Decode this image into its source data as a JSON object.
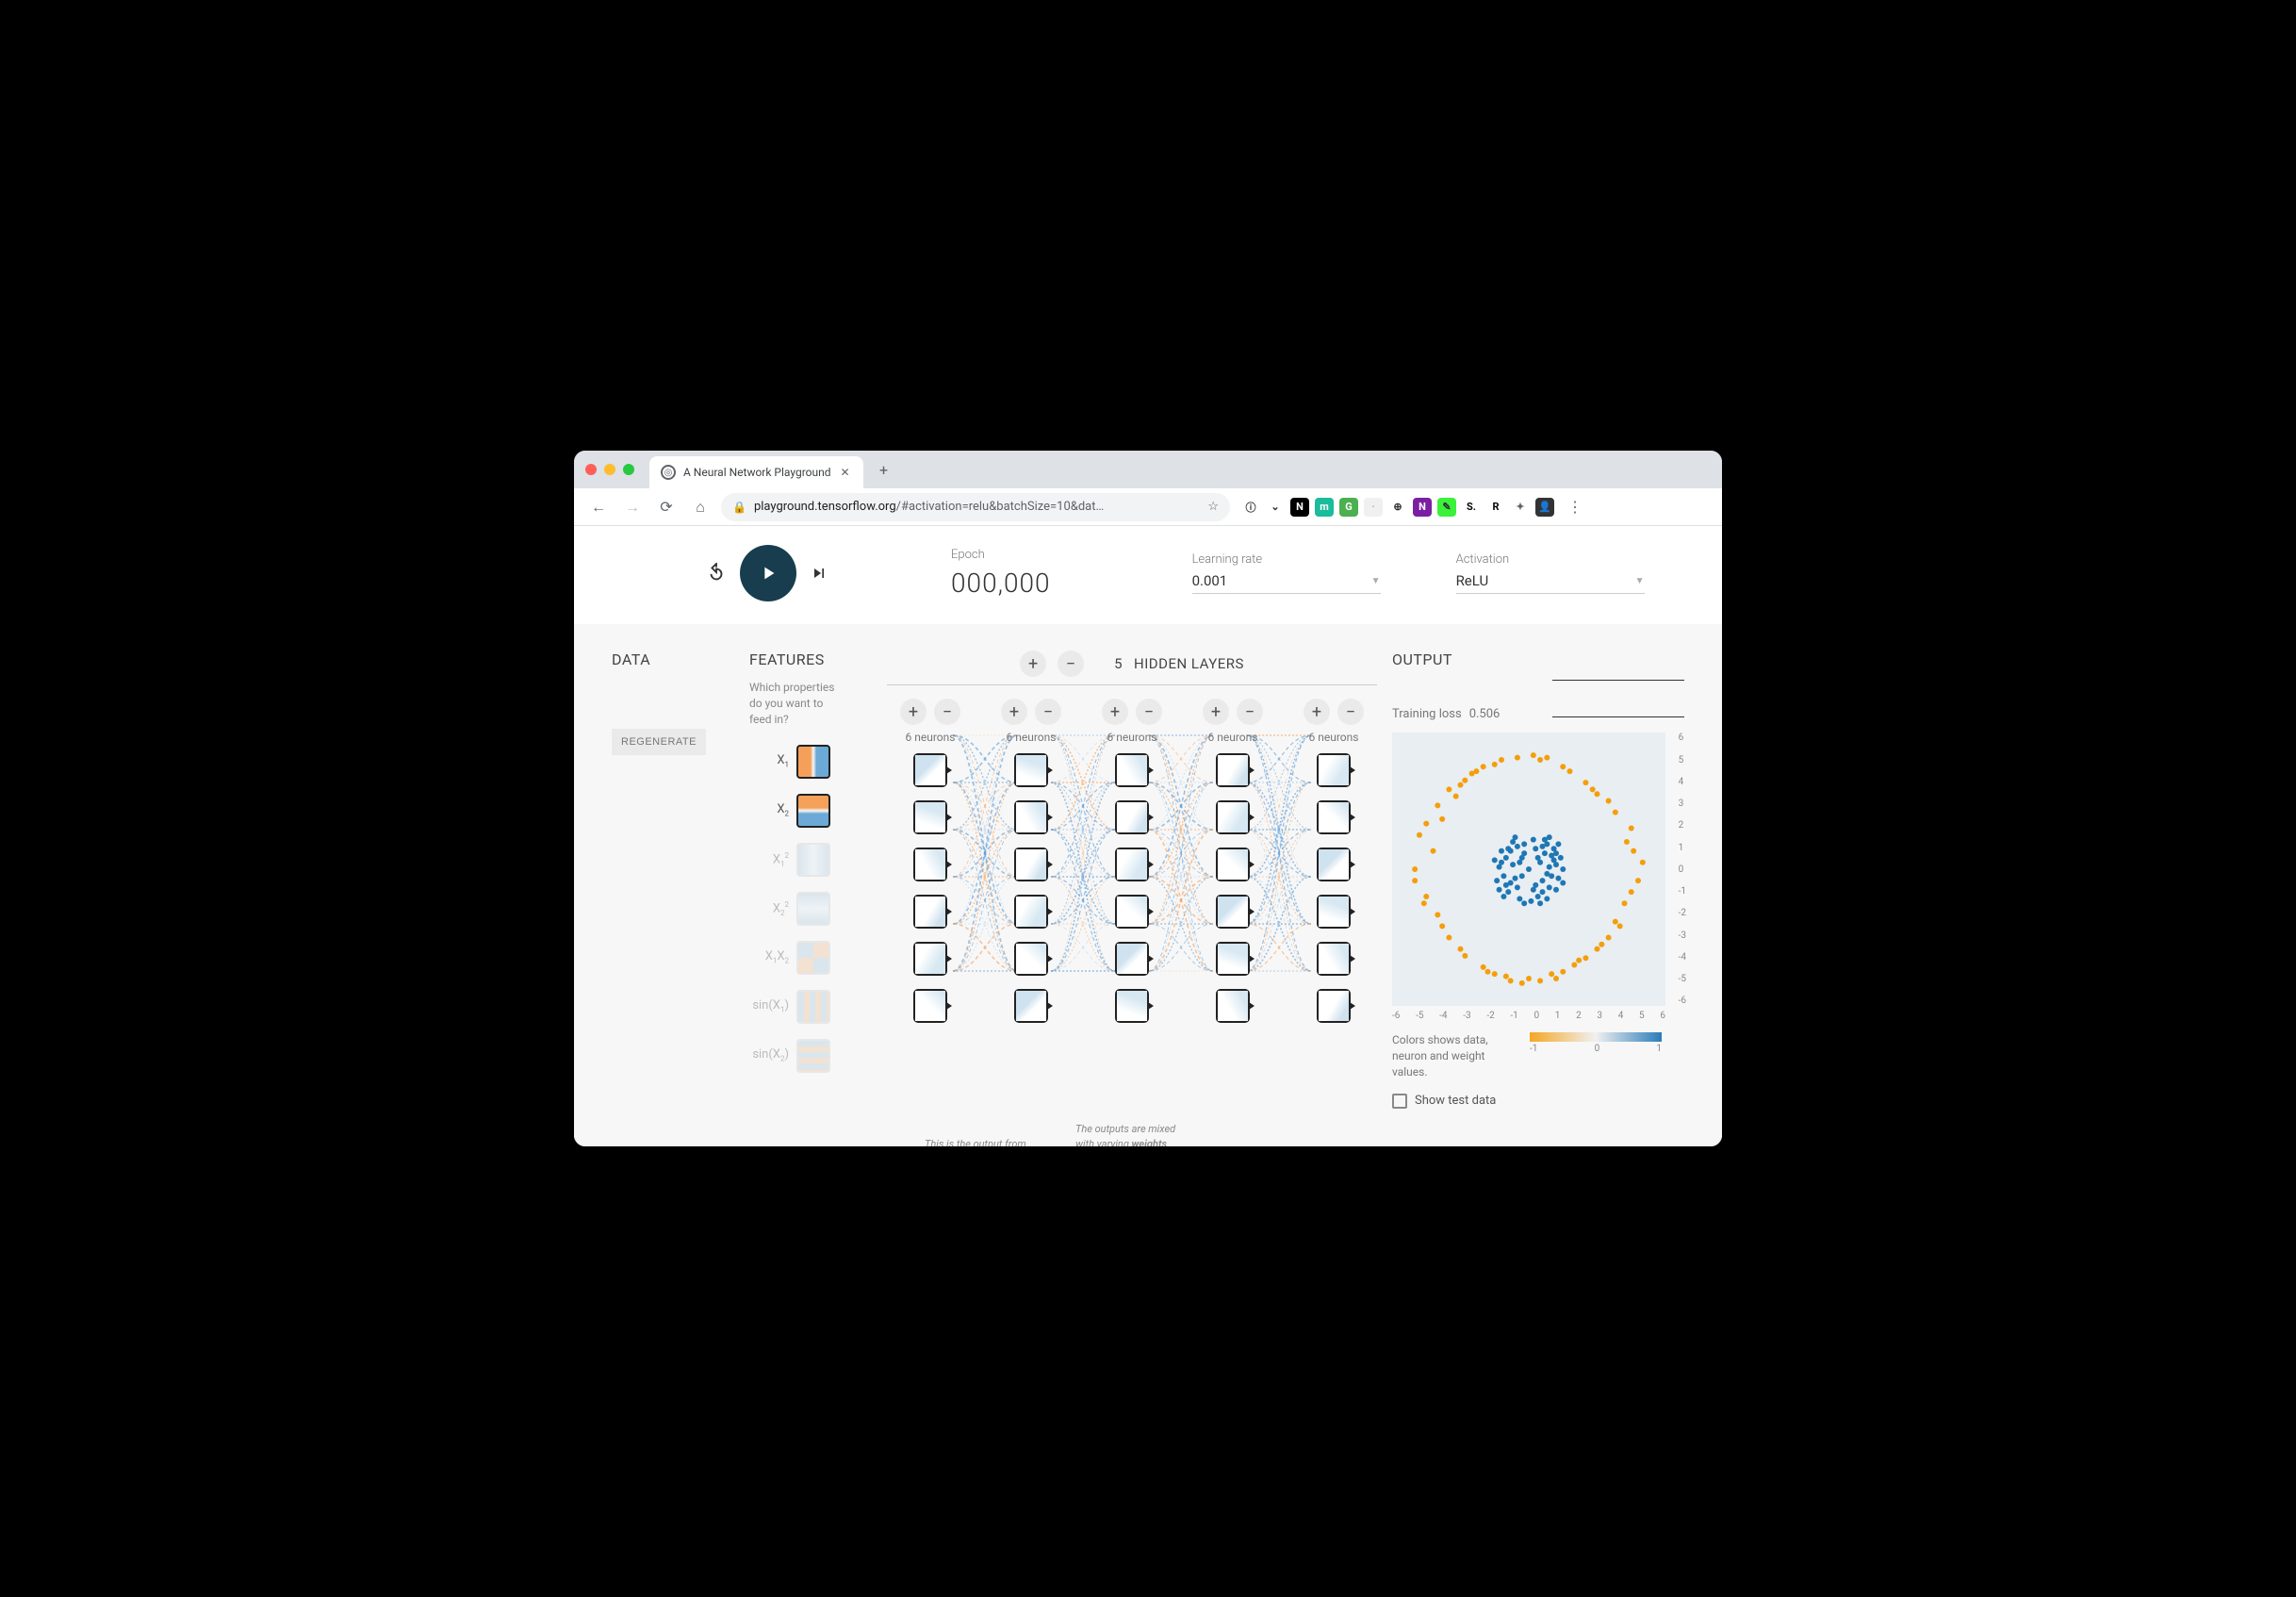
{
  "browser": {
    "tab_title": "A Neural Network Playground",
    "url_host": "playground.tensorflow.org",
    "url_path": "/#activation=relu&batchSize=10&dat…",
    "extensions": [
      {
        "bg": "#fff",
        "fg": "#333",
        "glyph": "ⓘ"
      },
      {
        "bg": "#fff",
        "fg": "#333",
        "glyph": "⌄"
      },
      {
        "bg": "#000",
        "fg": "#fff",
        "glyph": "N"
      },
      {
        "bg": "#1abc9c",
        "fg": "#fff",
        "glyph": "m"
      },
      {
        "bg": "#4caf50",
        "fg": "#fff",
        "glyph": "G"
      },
      {
        "bg": "#f0f0f0",
        "fg": "#aaa",
        "glyph": "·"
      },
      {
        "bg": "#fff",
        "fg": "#333",
        "glyph": "⊕"
      },
      {
        "bg": "#7b1fa2",
        "fg": "#fff",
        "glyph": "N"
      },
      {
        "bg": "#3af23a",
        "fg": "#333",
        "glyph": "✎"
      },
      {
        "bg": "#fff",
        "fg": "#000",
        "glyph": "S."
      },
      {
        "bg": "#fff",
        "fg": "#000",
        "glyph": "R"
      },
      {
        "bg": "#fff",
        "fg": "#5f6368",
        "glyph": "✦"
      },
      {
        "bg": "#333",
        "fg": "#fff",
        "glyph": "👤"
      }
    ]
  },
  "controls": {
    "epoch_label": "Epoch",
    "epoch_value": "000,000",
    "lr_label": "Learning rate",
    "lr_value": "0.001",
    "act_label": "Activation",
    "act_value": "ReLU"
  },
  "data_section": {
    "title": "DATA",
    "regenerate": "REGENERATE"
  },
  "features": {
    "title": "FEATURES",
    "subtitle": "Which properties do you want to feed in?",
    "list": [
      {
        "label": "X<sub>1</sub>",
        "active": true,
        "gradient": "linear-gradient(to right,#f5a05a 40%,#f7f7f7 50%,#6ca9d6 60%)"
      },
      {
        "label": "X<sub>2</sub>",
        "active": true,
        "gradient": "linear-gradient(to bottom,#f5a05a 40%,#f7f7f7 50%,#6ca9d6 60%)"
      },
      {
        "label": "X<sub>1</sub><sup>2</sup>",
        "active": false,
        "gradient": "linear-gradient(to right,#c8dbe8,#eaf1f6,#c8dbe8)"
      },
      {
        "label": "X<sub>2</sub><sup>2</sup>",
        "active": false,
        "gradient": "linear-gradient(to bottom,#c8dbe8,#eaf1f6,#c8dbe8)"
      },
      {
        "label": "X<sub>1</sub>X<sub>2</sub>",
        "active": false,
        "gradient": "conic-gradient(#f2d4b8 0 25%,#c8dbe8 25% 50%,#f2d4b8 50% 75%,#c8dbe8 75% 100%)"
      },
      {
        "label": "sin(X<sub>1</sub>)",
        "active": false,
        "gradient": "repeating-linear-gradient(to right,#c8dbe8 0 6px,#f2d4b8 6px 12px)"
      },
      {
        "label": "sin(X<sub>2</sub>)",
        "active": false,
        "gradient": "repeating-linear-gradient(to bottom,#c8dbe8 0 6px,#f2d4b8 6px 12px)"
      }
    ]
  },
  "network": {
    "hidden_count": "5",
    "hidden_label": "HIDDEN LAYERS",
    "layers": [
      {
        "neurons_label": "6 neurons",
        "count": 6
      },
      {
        "neurons_label": "6 neurons",
        "count": 6
      },
      {
        "neurons_label": "6 neurons",
        "count": 6
      },
      {
        "neurons_label": "6 neurons",
        "count": 6
      },
      {
        "neurons_label": "6 neurons",
        "count": 6
      }
    ],
    "neuron_gradients": [
      "linear-gradient(135deg,#cfe2ef 40%,#fff 60%)",
      "linear-gradient(200deg,#d7e8f2 30%,#fff 70%)",
      "linear-gradient(60deg,#fff 40%,#d7e8f2 80%)",
      "linear-gradient(120deg,#fff 50%,#d0e2ee 80%)",
      "linear-gradient(300deg,#d7e8f2 30%,#fff 70%)",
      "linear-gradient(45deg,#fff 50%,#d7e8f2 90%)"
    ],
    "callout1_html": "This is the output from one <b>neuron</b>. Hover to see it larger.",
    "callout2_html": "The outputs are mixed with varying <b>weights</b>, shown by the thickness of the lines.",
    "connection_colors": {
      "pos": "#5a9bd5",
      "neg": "#f5a05a"
    }
  },
  "output": {
    "title": "OUTPUT",
    "loss_label": "Training loss",
    "loss_value": "0.506",
    "axis_range": [
      -6,
      6
    ],
    "ticks": [
      "-6",
      "-5",
      "-4",
      "-3",
      "-2",
      "-1",
      "0",
      "1",
      "2",
      "3",
      "4",
      "5",
      "6"
    ],
    "colors": {
      "orange": "#f59e0b",
      "blue": "#1f77b4",
      "bg": "#e8eef2"
    },
    "legend_text": "Colors shows data, neuron and weight values.",
    "grad_labels": [
      "-1",
      "0",
      "1"
    ],
    "show_test": "Show test data",
    "scatter_orange": [
      [
        -4.8,
        1.5
      ],
      [
        -4.5,
        -1.2
      ],
      [
        -4,
        2.8
      ],
      [
        -3.8,
        -2.5
      ],
      [
        -3.5,
        3.5
      ],
      [
        -3,
        -3.5
      ],
      [
        -2.5,
        4.2
      ],
      [
        -2,
        -4.3
      ],
      [
        -1.5,
        4.6
      ],
      [
        -1,
        -4.7
      ],
      [
        -0.5,
        4.9
      ],
      [
        0,
        -4.8
      ],
      [
        0.5,
        4.8
      ],
      [
        1,
        -4.6
      ],
      [
        1.5,
        4.5
      ],
      [
        2,
        -4.2
      ],
      [
        2.5,
        3.8
      ],
      [
        3,
        -3.5
      ],
      [
        3.5,
        3
      ],
      [
        4,
        -2.5
      ],
      [
        -5,
        0
      ],
      [
        5,
        0.3
      ],
      [
        4.5,
        1.8
      ],
      [
        4.2,
        -1.5
      ],
      [
        -4.2,
        0.8
      ],
      [
        -3.2,
        3.2
      ],
      [
        -2.8,
        -3.8
      ],
      [
        1.8,
        4.3
      ],
      [
        2.8,
        3.5
      ],
      [
        3.5,
        -3
      ],
      [
        -1.2,
        4.8
      ],
      [
        0.2,
        5
      ],
      [
        1.2,
        -4.8
      ],
      [
        -0.8,
        -4.9
      ],
      [
        -4.5,
        2
      ],
      [
        -2,
        4.5
      ],
      [
        3,
        3.3
      ],
      [
        4.5,
        -1
      ],
      [
        -3.5,
        -3
      ],
      [
        -1.8,
        -4.5
      ],
      [
        4.8,
        -0.5
      ],
      [
        -5,
        -0.5
      ],
      [
        2.2,
        -4
      ],
      [
        0.8,
        4.9
      ],
      [
        -0.3,
        -5
      ],
      [
        3.8,
        2.5
      ],
      [
        -4,
        -2
      ],
      [
        4.3,
        1.2
      ],
      [
        -2.3,
        4.3
      ],
      [
        1.5,
        -4.5
      ],
      [
        -3.8,
        2.2
      ],
      [
        3.2,
        -3.3
      ],
      [
        -4.6,
        -1.5
      ],
      [
        4.6,
        0.8
      ],
      [
        -1.5,
        -4.6
      ],
      [
        0.5,
        -4.9
      ],
      [
        2.5,
        -3.9
      ],
      [
        -2.8,
        3.9
      ],
      [
        3.8,
        -2.3
      ],
      [
        -3,
        3.7
      ]
    ],
    "scatter_blue": [
      [
        0,
        0
      ],
      [
        0.5,
        0.3
      ],
      [
        -0.3,
        0.5
      ],
      [
        0.8,
        -0.2
      ],
      [
        -0.6,
        -0.4
      ],
      [
        1,
        0.6
      ],
      [
        -0.8,
        0.8
      ],
      [
        0.3,
        -0.7
      ],
      [
        -0.5,
        -0.8
      ],
      [
        1.2,
        0.2
      ],
      [
        0.6,
        1
      ],
      [
        -1,
        0.5
      ],
      [
        -0.2,
        1.1
      ],
      [
        0.9,
        -0.8
      ],
      [
        -1.1,
        -0.3
      ],
      [
        1.3,
        -0.4
      ],
      [
        0.2,
        1.3
      ],
      [
        -0.7,
        1.2
      ],
      [
        1.1,
        0.9
      ],
      [
        -1.3,
        0.1
      ],
      [
        0.4,
        -1.2
      ],
      [
        -0.9,
        -1
      ],
      [
        1.4,
        0.5
      ],
      [
        -0.4,
        -1.3
      ],
      [
        0.7,
        1.3
      ],
      [
        1.2,
        -0.9
      ],
      [
        -1.2,
        0.8
      ],
      [
        0.1,
        -1.4
      ],
      [
        -1.4,
        -0.5
      ],
      [
        1.5,
        0
      ],
      [
        -0.6,
        1.4
      ],
      [
        0.8,
        -1.3
      ],
      [
        1.3,
        1.1
      ],
      [
        -1.3,
        -0.9
      ],
      [
        0.5,
        -1.5
      ],
      [
        -0.2,
        -1.5
      ],
      [
        1.5,
        -0.6
      ],
      [
        -1.5,
        0.4
      ],
      [
        0.9,
        1.4
      ],
      [
        -1.1,
        -1.2
      ],
      [
        0.3,
        0.9
      ],
      [
        -0.4,
        0.3
      ],
      [
        0.6,
        -0.5
      ],
      [
        -0.8,
        -0.6
      ],
      [
        1,
        -0.3
      ],
      [
        -0.5,
        1
      ],
      [
        0.2,
        -0.9
      ],
      [
        1.1,
        0.4
      ],
      [
        -1,
        -0.7
      ],
      [
        0.7,
        0.7
      ],
      [
        -0.3,
        -0.3
      ],
      [
        0.4,
        0.5
      ],
      [
        -0.7,
        0.2
      ],
      [
        0.9,
        0.1
      ],
      [
        -0.2,
        0.7
      ],
      [
        0.6,
        -1
      ],
      [
        1.2,
        0.7
      ],
      [
        -1.2,
        0.3
      ],
      [
        0.8,
        1.1
      ],
      [
        -0.9,
        0.9
      ]
    ]
  }
}
